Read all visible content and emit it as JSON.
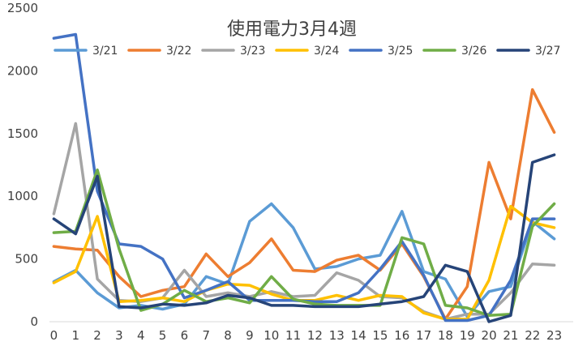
{
  "chart_data": {
    "type": "line",
    "title": "使用電力3月4週",
    "xlabel": "",
    "ylabel": "",
    "x": [
      0,
      1,
      2,
      3,
      4,
      5,
      6,
      7,
      8,
      9,
      10,
      11,
      12,
      13,
      14,
      15,
      16,
      17,
      18,
      19,
      20,
      21,
      22,
      23
    ],
    "ylim": [
      0,
      2500
    ],
    "yticks": [
      0,
      500,
      1000,
      1500,
      2000,
      2500
    ],
    "grid": false,
    "legend_position": "top",
    "series": [
      {
        "name": "3/21",
        "color": "#5B9BD5",
        "values": [
          320,
          410,
          230,
          110,
          130,
          100,
          140,
          360,
          300,
          800,
          940,
          750,
          420,
          440,
          500,
          530,
          880,
          400,
          340,
          40,
          240,
          280,
          800,
          660
        ]
      },
      {
        "name": "3/22",
        "color": "#ED7D31",
        "values": [
          600,
          580,
          570,
          360,
          200,
          250,
          280,
          540,
          360,
          470,
          660,
          410,
          400,
          490,
          530,
          410,
          620,
          360,
          20,
          280,
          1270,
          820,
          1850,
          1510
        ]
      },
      {
        "name": "3/23",
        "color": "#A5A5A5",
        "values": [
          860,
          1580,
          340,
          170,
          160,
          190,
          410,
          200,
          230,
          200,
          240,
          200,
          210,
          390,
          330,
          200,
          190,
          80,
          20,
          60,
          60,
          230,
          460,
          450
        ]
      },
      {
        "name": "3/24",
        "color": "#FFC000",
        "values": [
          310,
          400,
          840,
          160,
          170,
          190,
          160,
          250,
          300,
          290,
          220,
          170,
          170,
          210,
          170,
          210,
          200,
          70,
          20,
          20,
          330,
          920,
          790,
          750
        ]
      },
      {
        "name": "3/25",
        "color": "#4472C4",
        "values": [
          2260,
          2290,
          1040,
          620,
          600,
          500,
          190,
          250,
          320,
          170,
          170,
          170,
          160,
          160,
          230,
          420,
          640,
          370,
          10,
          10,
          50,
          330,
          820,
          820
        ]
      },
      {
        "name": "3/26",
        "color": "#70AD47",
        "values": [
          710,
          720,
          1210,
          580,
          90,
          140,
          250,
          160,
          190,
          150,
          360,
          180,
          140,
          130,
          130,
          130,
          670,
          620,
          130,
          110,
          50,
          60,
          760,
          940
        ]
      },
      {
        "name": "3/27",
        "color": "#264478",
        "values": [
          820,
          700,
          1160,
          120,
          110,
          140,
          130,
          150,
          210,
          190,
          130,
          130,
          120,
          120,
          120,
          140,
          160,
          200,
          450,
          400,
          0,
          50,
          1270,
          1330
        ]
      }
    ]
  }
}
